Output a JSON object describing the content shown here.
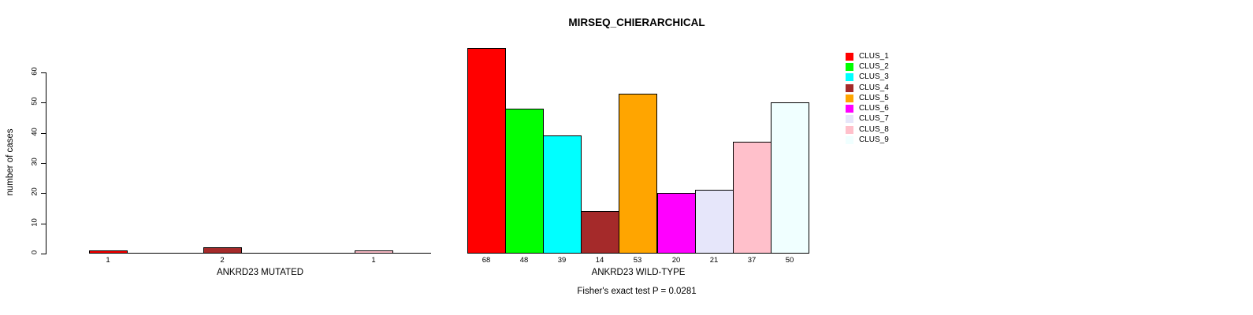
{
  "chart_data": {
    "type": "bar",
    "title": "MIRSEQ_CHIERARCHICAL",
    "ylabel": "number of cases",
    "ylim": [
      0,
      68
    ],
    "yticks": [
      0,
      10,
      20,
      30,
      40,
      50,
      60
    ],
    "grid": false,
    "legend_position": "right",
    "groups": [
      {
        "xlabel": "ANKRD23 MUTATED",
        "slots": 9,
        "bars": [
          {
            "cluster": "CLUS_1",
            "value": 1
          },
          {
            "cluster": "CLUS_4",
            "value": 2
          },
          {
            "cluster": "CLUS_8",
            "value": 1
          }
        ]
      },
      {
        "xlabel": "ANKRD23 WILD-TYPE",
        "slots": 9,
        "bars": [
          {
            "cluster": "CLUS_1",
            "value": 68
          },
          {
            "cluster": "CLUS_2",
            "value": 48
          },
          {
            "cluster": "CLUS_3",
            "value": 39
          },
          {
            "cluster": "CLUS_4",
            "value": 14
          },
          {
            "cluster": "CLUS_5",
            "value": 53
          },
          {
            "cluster": "CLUS_6",
            "value": 20
          },
          {
            "cluster": "CLUS_7",
            "value": 21
          },
          {
            "cluster": "CLUS_8",
            "value": 37
          },
          {
            "cluster": "CLUS_9",
            "value": 50
          }
        ]
      }
    ],
    "annotation": "Fisher's exact test P = 0.0281"
  },
  "legend": {
    "items": [
      {
        "label": "CLUS_1",
        "color": "#FF0000"
      },
      {
        "label": "CLUS_2",
        "color": "#00FF00"
      },
      {
        "label": "CLUS_3",
        "color": "#00FFFF"
      },
      {
        "label": "CLUS_4",
        "color": "#A52A2A"
      },
      {
        "label": "CLUS_5",
        "color": "#FFA500"
      },
      {
        "label": "CLUS_6",
        "color": "#FF00FF"
      },
      {
        "label": "CLUS_7",
        "color": "#E6E6FA"
      },
      {
        "label": "CLUS_8",
        "color": "#FFC0CB"
      },
      {
        "label": "CLUS_9",
        "color": "#F0FFFF"
      }
    ]
  },
  "colors": {
    "axis": "#000000",
    "background": "#FFFFFF",
    "text": "#000000"
  }
}
